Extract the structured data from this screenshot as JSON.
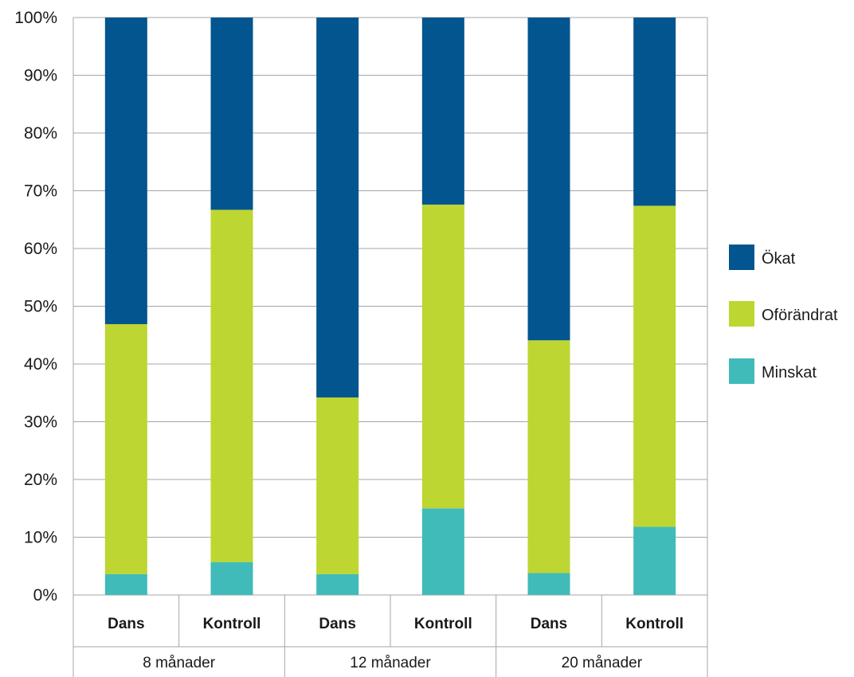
{
  "chart_data": {
    "type": "bar",
    "stacked": true,
    "percent_axis": true,
    "ylim": [
      0,
      100
    ],
    "y_ticks": [
      "0%",
      "10%",
      "20%",
      "30%",
      "40%",
      "50%",
      "60%",
      "70%",
      "80%",
      "90%",
      "100%"
    ],
    "categories": [
      "Dans",
      "Kontroll",
      "Dans",
      "Kontroll",
      "Dans",
      "Kontroll"
    ],
    "groups": [
      "8 månader",
      "12 månader",
      "20 månader"
    ],
    "series": [
      {
        "name": "Minskat",
        "color": "#40bbb9",
        "values": [
          3.6,
          5.7,
          3.6,
          15.0,
          3.8,
          11.8
        ]
      },
      {
        "name": "Oförändrat",
        "color": "#bdd631",
        "values": [
          43.3,
          61.0,
          30.6,
          52.6,
          40.3,
          55.6
        ]
      },
      {
        "name": "Ökat",
        "color": "#02558f",
        "values": [
          53.1,
          33.3,
          65.8,
          32.4,
          55.9,
          32.6
        ]
      }
    ],
    "legend": {
      "position": "right",
      "order": [
        "Ökat",
        "Oförändrat",
        "Minskat"
      ]
    },
    "grid": true,
    "title": "",
    "xlabel": "",
    "ylabel": ""
  }
}
